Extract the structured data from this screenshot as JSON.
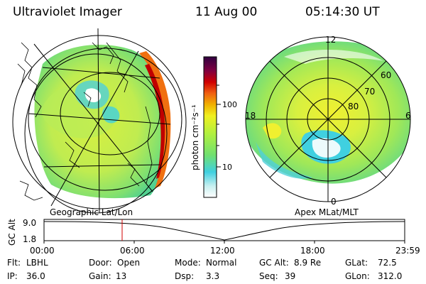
{
  "header": {
    "title": "Ultraviolet Imager",
    "date": "11 Aug 00",
    "time": "05:14:30 UT"
  },
  "left_map": {
    "caption": "Geographic Lat/Lon"
  },
  "right_map": {
    "caption": "Apex MLat/MLT",
    "mlt_labels": {
      "top": "12",
      "left": "18",
      "right": "6",
      "bottom": "0"
    },
    "lat_labels": [
      "60",
      "70",
      "80"
    ]
  },
  "colorbar": {
    "label": "photon cm⁻²s⁻¹",
    "ticks": [
      "100",
      "10"
    ],
    "colors": [
      "#ffffff",
      "#c8f0f0",
      "#40d0e0",
      "#70e070",
      "#b0f040",
      "#f0f020",
      "#f0b000",
      "#f06010",
      "#d00000",
      "#800040",
      "#300040"
    ]
  },
  "timeline": {
    "ylabel": "GC Alt",
    "ymax": "9.0",
    "ymin": "1.8",
    "ticks": [
      "00:00",
      "06:00",
      "12:00",
      "18:00",
      "23:59"
    ],
    "marker_time": "05:14:30",
    "marker_color": "#d00000"
  },
  "info": {
    "flt_label": "Flt:",
    "flt_value": "LBHL",
    "ip_label": "IP:",
    "ip_value": "36.0",
    "door_label": "Door:",
    "door_value": "Open",
    "gain_label": "Gain:",
    "gain_value": "13",
    "mode_label": "Mode:",
    "mode_value": "Normal",
    "dsp_label": "Dsp:",
    "dsp_value": "3.3",
    "gcalt_label": "GC Alt:",
    "gcalt_value": "8.9 Re",
    "seq_label": "Seq:",
    "seq_value": "39",
    "glat_label": "GLat:",
    "glat_value": "72.5",
    "glon_label": "GLon:",
    "glon_value": "312.0"
  }
}
